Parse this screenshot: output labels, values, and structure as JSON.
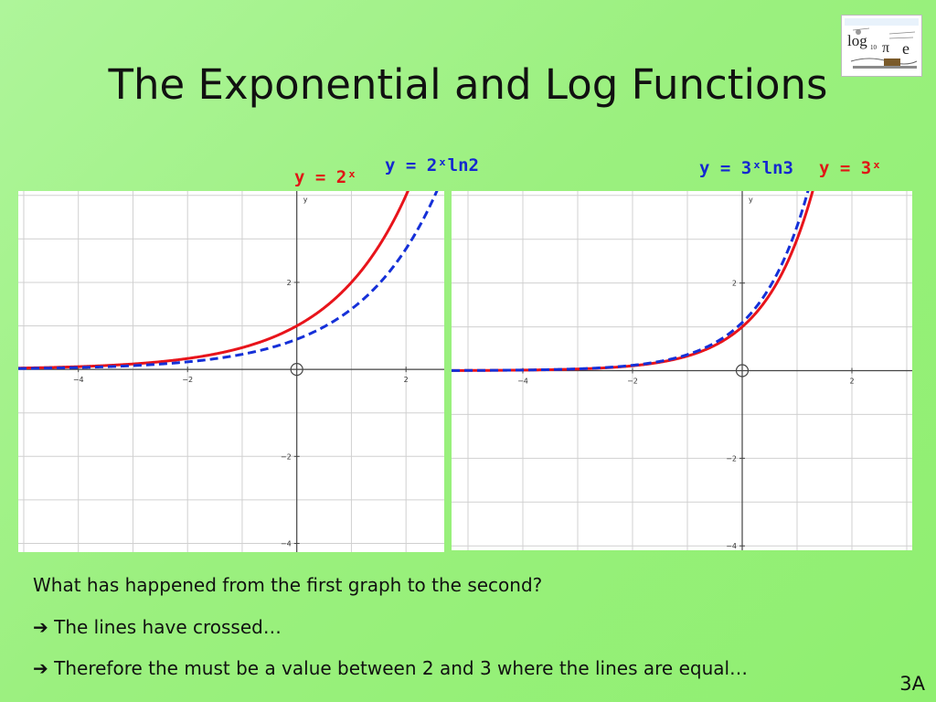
{
  "title": "The Exponential and Log Functions",
  "logo": {
    "text": "log",
    "sub": "10",
    "pi": "π",
    "e": "e"
  },
  "labels": {
    "g1_red": "y = 2ˣ",
    "g1_blue": "y = 2ˣln2",
    "g2_blue": "y = 3ˣln3",
    "g2_red": "y = 3ˣ"
  },
  "colors": {
    "red": "#e8141b",
    "blue": "#1530d8",
    "grid": "#d0d0d0",
    "axis": "#444444"
  },
  "chart_data": [
    {
      "type": "line",
      "x_label": "",
      "y_label": "y",
      "xlim": [
        -5.1,
        2.7
      ],
      "ylim": [
        -4.2,
        4.1
      ],
      "xticks": [
        -4,
        -2,
        2
      ],
      "yticks": [
        2,
        -2,
        -4
      ],
      "grid": true,
      "series": [
        {
          "name": "y = 2ˣ",
          "style": "solid",
          "color": "#e8141b",
          "base": 2,
          "scale": 1
        },
        {
          "name": "y = 2ˣln2",
          "style": "dashed",
          "color": "#1530d8",
          "base": 2,
          "scale": 0.6931
        }
      ]
    },
    {
      "type": "line",
      "x_label": "",
      "y_label": "y",
      "xlim": [
        -5.3,
        3.1
      ],
      "ylim": [
        -4.1,
        4.1
      ],
      "xticks": [
        -4,
        -2,
        2
      ],
      "yticks": [
        2,
        -2,
        -4
      ],
      "grid": true,
      "series": [
        {
          "name": "y = 3ˣ",
          "style": "solid",
          "color": "#e8141b",
          "base": 3,
          "scale": 1
        },
        {
          "name": "y = 3ˣln3",
          "style": "dashed",
          "color": "#1530d8",
          "base": 3,
          "scale": 1.0986
        }
      ]
    }
  ],
  "question": "What has happened from the first graph to the second?",
  "bullets": [
    "The lines have crossed…",
    "Therefore the must be a value between 2 and 3 where the lines are equal…"
  ],
  "bullet_arrow": "➔",
  "slide_number": "3A"
}
